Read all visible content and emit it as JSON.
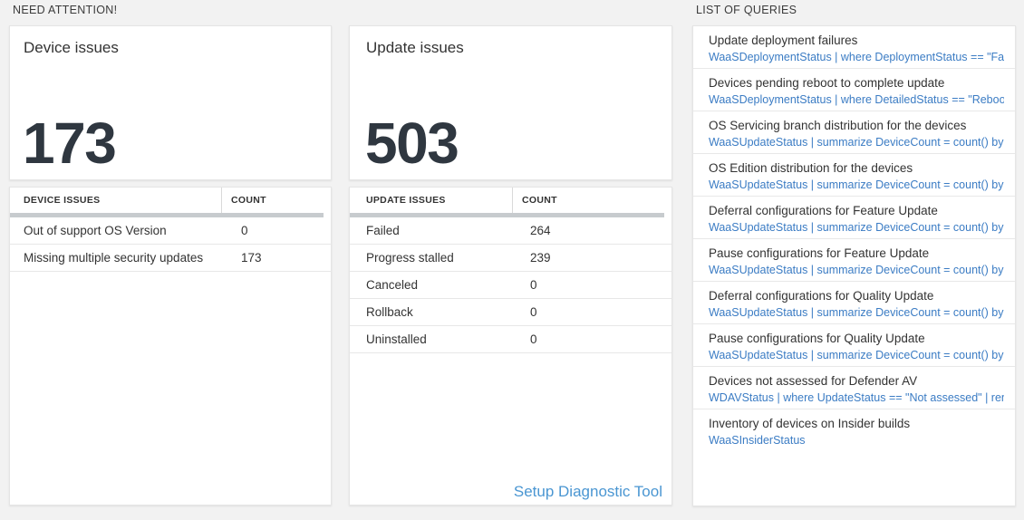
{
  "header": {
    "need_attention_label": "NEED ATTENTION!",
    "list_of_queries_label": "LIST OF QUERIES"
  },
  "device_issues_card": {
    "title": "Device issues",
    "value": "173"
  },
  "device_issues_table": {
    "headers": [
      "DEVICE ISSUES",
      "COUNT"
    ],
    "rows": [
      {
        "label": "Out of support OS Version",
        "count": "0"
      },
      {
        "label": "Missing multiple security updates",
        "count": "173"
      }
    ]
  },
  "update_issues_card": {
    "title": "Update issues",
    "value": "503"
  },
  "update_issues_table": {
    "headers": [
      "UPDATE ISSUES",
      "COUNT"
    ],
    "rows": [
      {
        "label": "Failed",
        "count": "264"
      },
      {
        "label": "Progress stalled",
        "count": "239"
      },
      {
        "label": "Canceled",
        "count": "0"
      },
      {
        "label": "Rollback",
        "count": "0"
      },
      {
        "label": "Uninstalled",
        "count": "0"
      }
    ],
    "setup_link_label": "Setup Diagnostic Tool"
  },
  "queries": [
    {
      "title": "Update deployment failures",
      "query": "WaaSDeploymentStatus | where DeploymentStatus == \"Failed\" |..."
    },
    {
      "title": "Devices pending reboot to complete update",
      "query": "WaaSDeploymentStatus | where DetailedStatus == \"Reboot pend..."
    },
    {
      "title": "OS Servicing branch distribution for the devices",
      "query": "WaaSUpdateStatus | summarize DeviceCount = count() by OSSer..."
    },
    {
      "title": "OS Edition distribution for the devices",
      "query": "WaaSUpdateStatus | summarize DeviceCount = count() by OSEdit..."
    },
    {
      "title": "Deferral configurations for Feature Update",
      "query": "WaaSUpdateStatus | summarize DeviceCount = count() by Featur..."
    },
    {
      "title": "Pause configurations for Feature Update",
      "query": "WaaSUpdateStatus | summarize DeviceCount = count() by Featur..."
    },
    {
      "title": "Deferral configurations for Quality Update",
      "query": "WaaSUpdateStatus | summarize DeviceCount = count() by Qualit..."
    },
    {
      "title": "Pause configurations for Quality Update",
      "query": "WaaSUpdateStatus | summarize DeviceCount = count() by Qualit..."
    },
    {
      "title": "Devices not assessed for Defender AV",
      "query": "WDAVStatus | where UpdateStatus == \"Not assessed\" | render ta..."
    },
    {
      "title": "Inventory of devices on Insider builds",
      "query": "WaaSInsiderStatus"
    }
  ],
  "colors": {
    "background": "#f2f2f2",
    "panel_border": "#e5e5e5",
    "big_number": "#2f3740",
    "query_link_blue": "#3b7cc4",
    "setup_link_blue": "#4a96d2",
    "table_header_bar": "#c7cbce"
  }
}
